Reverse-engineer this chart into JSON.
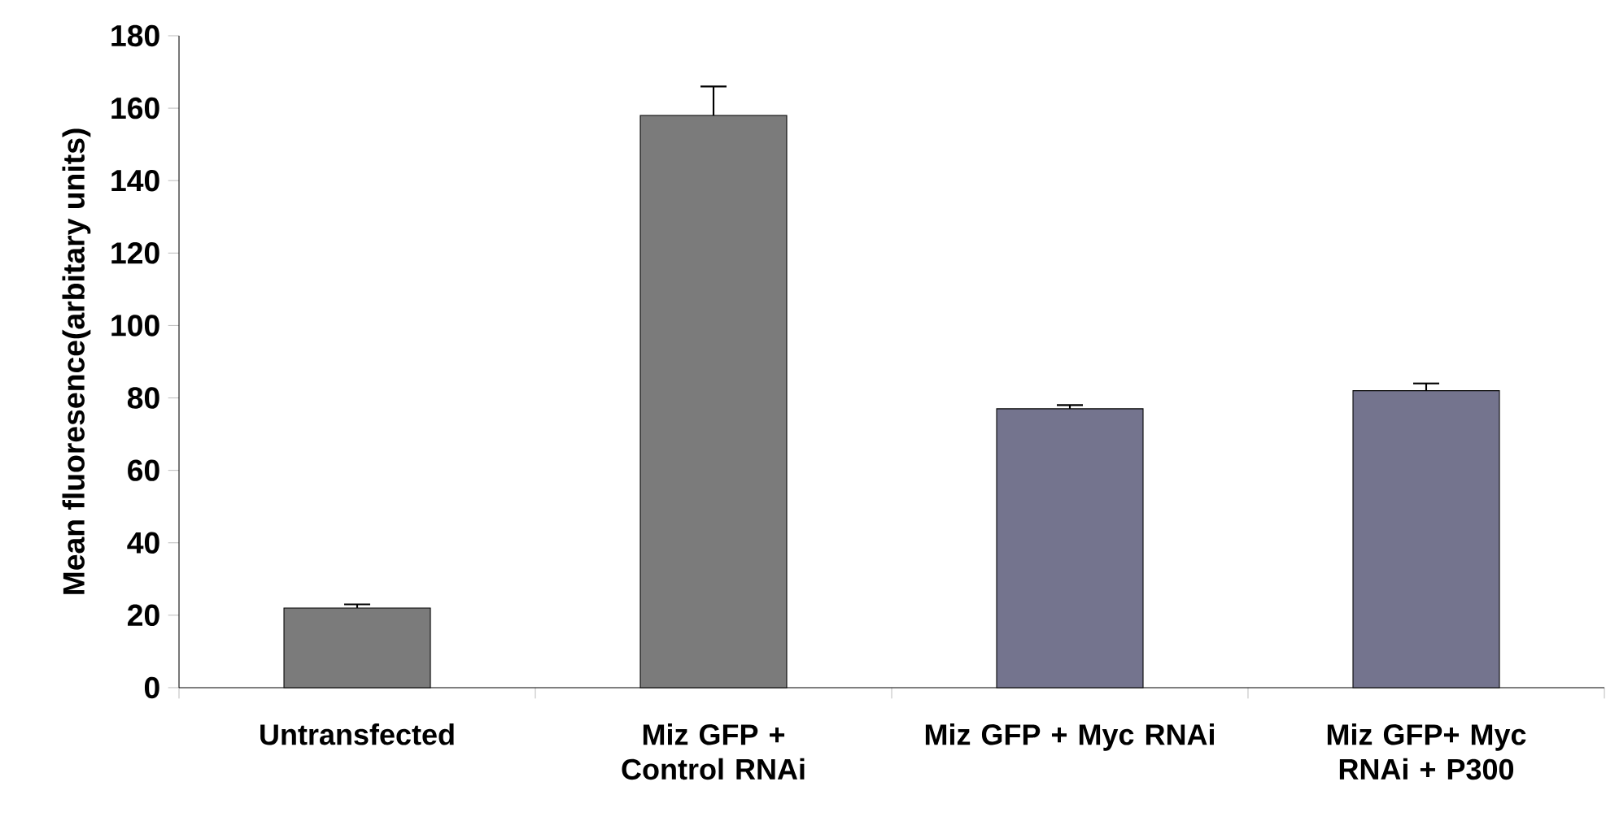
{
  "chart_data": {
    "type": "bar",
    "ylabel": "Mean fluoresence(arbitary units)",
    "categories": [
      "Untransfected",
      "Miz GFP + Control RNAi",
      "Miz GFP + Myc RNAi",
      "Miz GFP+ Myc RNAi + P300"
    ],
    "values": [
      22,
      158,
      77,
      82
    ],
    "colors": [
      "#7b7b7b",
      "#7b7b7b",
      "#74748e",
      "#74748e"
    ],
    "errors": [
      [
        22,
        23
      ],
      [
        158,
        166
      ],
      [
        77,
        78
      ],
      [
        82,
        84
      ]
    ],
    "ylim": [
      0,
      180
    ],
    "yticks": [
      0,
      20,
      40,
      60,
      80,
      100,
      120,
      140,
      160,
      180
    ],
    "grid": false
  }
}
